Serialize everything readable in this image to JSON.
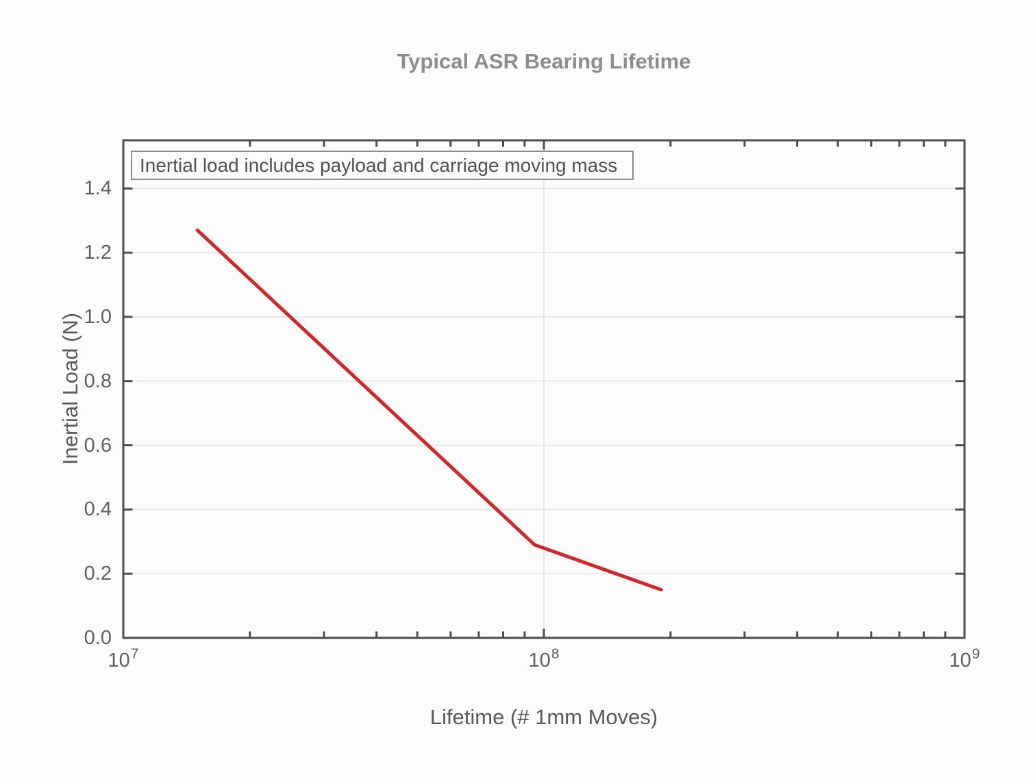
{
  "figure": {
    "title": "Typical ASR Bearing Lifetime",
    "annotation": "Inertial load includes payload and carriage moving mass"
  },
  "chart_data": {
    "type": "line",
    "title": "Typical ASR Bearing Lifetime",
    "xlabel": "Lifetime (# 1mm Moves)",
    "ylabel": "Inertial Load (N)",
    "annotation": "Inertial load includes payload and carriage moving mass",
    "x_scale": "log",
    "xlim": [
      10000000,
      1000000000
    ],
    "ylim": [
      0,
      1.55
    ],
    "grid": true,
    "legend": false,
    "series": [
      {
        "x": [
          15000000,
          95000000,
          190000000
        ],
        "y": [
          1.27,
          0.29,
          0.15
        ]
      }
    ],
    "yticks": {
      "values": [
        0,
        0.2,
        0.4,
        0.6,
        0.8,
        1.0,
        1.2,
        1.4
      ],
      "labels": [
        "0.0",
        "0.2",
        "0.4",
        "0.6",
        "0.8",
        "1.0",
        "1.2",
        "1.4"
      ]
    },
    "xticks": {
      "values": [
        10000000,
        100000000,
        1000000000
      ],
      "base": "10",
      "exponents": [
        "7",
        "8",
        "9"
      ]
    },
    "minor_tick_multipliers": [
      2,
      3,
      4,
      5,
      6,
      7,
      8,
      9
    ],
    "colors": {
      "line": "#d2262c",
      "grid": "#e2e2e2",
      "axis": "#4d4d4d",
      "tick_label": "#5f5f5f",
      "title": "#8d8d8d",
      "axis_label": "#5a5a5a",
      "annotation_border": "#8c8c8c",
      "annotation_text": "#525252",
      "background": "#fcfcfc"
    }
  }
}
